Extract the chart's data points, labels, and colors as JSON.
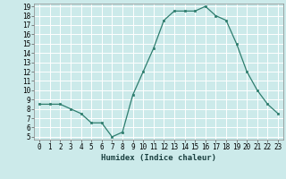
{
  "x": [
    0,
    1,
    2,
    3,
    4,
    5,
    6,
    7,
    8,
    9,
    10,
    11,
    12,
    13,
    14,
    15,
    16,
    17,
    18,
    19,
    20,
    21,
    22,
    23
  ],
  "y": [
    8.5,
    8.5,
    8.5,
    8.0,
    7.5,
    6.5,
    6.5,
    5.0,
    5.5,
    9.5,
    12.0,
    14.5,
    17.5,
    18.5,
    18.5,
    18.5,
    19.0,
    18.0,
    17.5,
    15.0,
    12.0,
    10.0,
    8.5,
    7.5
  ],
  "xlabel": "Humidex (Indice chaleur)",
  "ylabel": "",
  "ylim": [
    5,
    19
  ],
  "xlim": [
    -0.5,
    23.5
  ],
  "yticks": [
    5,
    6,
    7,
    8,
    9,
    10,
    11,
    12,
    13,
    14,
    15,
    16,
    17,
    18,
    19
  ],
  "xticks": [
    0,
    1,
    2,
    3,
    4,
    5,
    6,
    7,
    8,
    9,
    10,
    11,
    12,
    13,
    14,
    15,
    16,
    17,
    18,
    19,
    20,
    21,
    22,
    23
  ],
  "line_color": "#2e7d6e",
  "marker_color": "#2e7d6e",
  "bg_color": "#cceaea",
  "grid_color": "#ffffff",
  "label_fontsize": 6.5,
  "tick_fontsize": 5.5,
  "fig_width": 3.2,
  "fig_height": 2.0,
  "dpi": 100
}
